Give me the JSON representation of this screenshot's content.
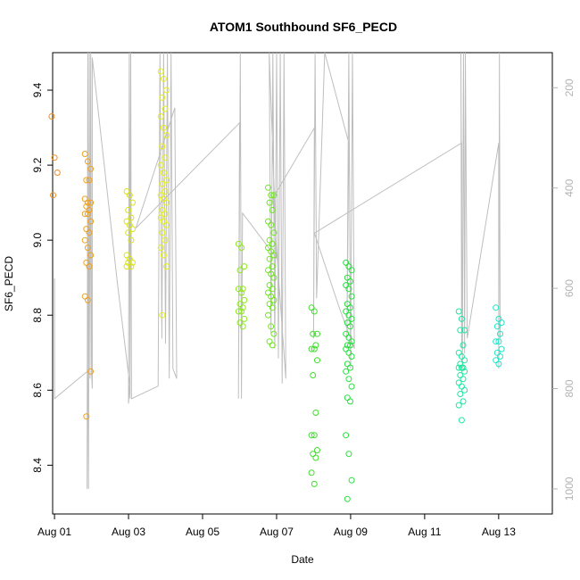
{
  "chart_data": {
    "type": "scatter",
    "title": "ATOM1 Southbound SF6_PECD",
    "xlabel": "Date",
    "ylabel": "SF6_PECD",
    "y2label": "",
    "xlim": [
      -0.05,
      13.45
    ],
    "ylim": [
      8.27,
      9.5
    ],
    "y2lim": [
      130,
      1050
    ],
    "y2_reversed": true,
    "x_ticks": [
      {
        "v": 0,
        "label": "Aug 01"
      },
      {
        "v": 2,
        "label": "Aug 03"
      },
      {
        "v": 4,
        "label": "Aug 05"
      },
      {
        "v": 6,
        "label": "Aug 07"
      },
      {
        "v": 8,
        "label": "Aug 09"
      },
      {
        "v": 10,
        "label": "Aug 11"
      },
      {
        "v": 12,
        "label": "Aug 13"
      }
    ],
    "y_ticks": [
      {
        "v": 8.4,
        "label": "8.4"
      },
      {
        "v": 8.6,
        "label": "8.6"
      },
      {
        "v": 8.8,
        "label": "8.8"
      },
      {
        "v": 9.0,
        "label": "9.0"
      },
      {
        "v": 9.2,
        "label": "9.2"
      },
      {
        "v": 9.4,
        "label": "9.4"
      }
    ],
    "y2_ticks": [
      {
        "v": 200,
        "label": "200"
      },
      {
        "v": 400,
        "label": "400"
      },
      {
        "v": 600,
        "label": "600"
      },
      {
        "v": 800,
        "label": "800"
      },
      {
        "v": 1000,
        "label": "1000"
      }
    ],
    "grid": false,
    "legend": "none",
    "colors": {
      "axis": "#000000",
      "right_axis": "#b3b3b3",
      "altitude_trace": "#bebebe"
    },
    "point_groups": [
      {
        "x": 0.0,
        "color": "#f08c1e",
        "values": [
          9.33,
          9.22,
          9.18,
          9.12
        ]
      },
      {
        "x": 0.9,
        "color": "#f0a01e",
        "values": [
          9.23,
          9.21,
          9.19,
          9.16,
          9.16,
          9.11,
          9.1,
          9.1,
          9.09,
          9.08,
          9.07,
          9.07,
          9.05,
          9.03,
          9.02,
          9.0,
          8.98,
          8.96,
          8.94,
          8.93,
          8.85,
          8.84,
          8.65,
          8.53
        ]
      },
      {
        "x": 2.03,
        "color": "#d8e21a",
        "values": [
          9.13,
          9.12,
          9.1,
          9.08,
          9.06,
          9.05,
          9.04,
          9.03,
          9.02,
          9.0,
          8.96,
          8.95,
          8.94,
          8.94,
          8.93,
          8.93
        ]
      },
      {
        "x": 2.95,
        "color": "#e6f018",
        "values": [
          9.45,
          9.43,
          9.4,
          9.38,
          9.35,
          9.33,
          9.3,
          9.28,
          9.25,
          9.22,
          9.2,
          9.18,
          9.16,
          9.15,
          9.13,
          9.12,
          9.11,
          9.1,
          9.08,
          9.07,
          9.06,
          9.05,
          9.04,
          9.02,
          9.0,
          8.98,
          8.96,
          8.93,
          8.8
        ]
      },
      {
        "x": 5.05,
        "color": "#8ee81e",
        "values": [
          8.99,
          8.98,
          8.93,
          8.92,
          8.87,
          8.87,
          8.86,
          8.84,
          8.83,
          8.82,
          8.81,
          8.81,
          8.79,
          8.78,
          8.77
        ]
      },
      {
        "x": 5.85,
        "color": "#6ee61e",
        "values": [
          9.14,
          9.12,
          9.12,
          9.1,
          9.08,
          9.05,
          9.04,
          9.02,
          9.0,
          8.99,
          8.98,
          8.97,
          8.96,
          8.95,
          8.93,
          8.92,
          8.91,
          8.9,
          8.88,
          8.87,
          8.86,
          8.85,
          8.84,
          8.83,
          8.82,
          8.8,
          8.77,
          8.75,
          8.73,
          8.72
        ]
      },
      {
        "x": 7.02,
        "color": "#3ce028",
        "values": [
          8.82,
          8.81,
          8.75,
          8.75,
          8.72,
          8.71,
          8.71,
          8.68,
          8.64,
          8.54,
          8.48,
          8.48,
          8.44,
          8.43,
          8.42,
          8.38,
          8.35
        ]
      },
      {
        "x": 7.95,
        "color": "#28e040",
        "values": [
          8.94,
          8.93,
          8.92,
          8.9,
          8.89,
          8.88,
          8.87,
          8.85,
          8.83,
          8.82,
          8.81,
          8.8,
          8.79,
          8.78,
          8.77,
          8.75,
          8.74,
          8.73,
          8.72,
          8.72,
          8.71,
          8.7,
          8.69,
          8.67,
          8.66,
          8.65,
          8.63,
          8.61,
          8.58,
          8.57,
          8.48,
          8.43,
          8.36,
          8.31
        ]
      },
      {
        "x": 11.0,
        "color": "#1ee6a0",
        "values": [
          8.81,
          8.79,
          8.76,
          8.76,
          8.72,
          8.7,
          8.69,
          8.68,
          8.67,
          8.66,
          8.66,
          8.66,
          8.65,
          8.64,
          8.63,
          8.62,
          8.61,
          8.6,
          8.59,
          8.57,
          8.56,
          8.52
        ]
      },
      {
        "x": 12.0,
        "color": "#1ee6c8",
        "values": [
          8.82,
          8.79,
          8.78,
          8.77,
          8.75,
          8.73,
          8.73,
          8.71,
          8.7,
          8.69,
          8.68,
          8.67
        ]
      }
    ],
    "altitude_trace": [
      [
        0.0,
        580
      ],
      [
        0.0,
        820
      ],
      [
        0.9,
        765
      ],
      [
        0.88,
        1000
      ],
      [
        0.9,
        130
      ],
      [
        0.92,
        1000
      ],
      [
        0.94,
        130
      ],
      [
        0.96,
        780
      ],
      [
        0.98,
        130
      ],
      [
        1.0,
        770
      ],
      [
        1.02,
        800
      ],
      [
        1.02,
        140
      ],
      [
        1.7,
        590
      ],
      [
        2.03,
        790
      ],
      [
        2.0,
        830
      ],
      [
        2.02,
        130
      ],
      [
        2.04,
        820
      ],
      [
        2.06,
        130
      ],
      [
        2.08,
        820
      ],
      [
        2.8,
        795
      ],
      [
        2.85,
        130
      ],
      [
        2.9,
        700
      ],
      [
        2.95,
        130
      ],
      [
        3.0,
        710
      ],
      [
        3.05,
        130
      ],
      [
        3.1,
        780
      ],
      [
        3.15,
        130
      ],
      [
        3.2,
        760
      ],
      [
        3.3,
        780
      ],
      [
        3.25,
        240
      ],
      [
        2.2,
        480
      ],
      [
        5.0,
        270
      ],
      [
        4.97,
        820
      ],
      [
        5.02,
        130
      ],
      [
        5.05,
        820
      ],
      [
        5.08,
        450
      ],
      [
        6.0,
        540
      ],
      [
        5.8,
        130
      ],
      [
        5.85,
        690
      ],
      [
        5.9,
        130
      ],
      [
        5.95,
        720
      ],
      [
        6.0,
        130
      ],
      [
        6.05,
        740
      ],
      [
        6.1,
        130
      ],
      [
        6.15,
        790
      ],
      [
        6.2,
        130
      ],
      [
        6.25,
        780
      ],
      [
        5.9,
        420
      ],
      [
        7.02,
        280
      ],
      [
        7.0,
        700
      ],
      [
        7.04,
        130
      ],
      [
        7.08,
        620
      ],
      [
        7.3,
        130
      ],
      [
        7.95,
        310
      ],
      [
        7.9,
        700
      ],
      [
        7.95,
        130
      ],
      [
        8.0,
        760
      ],
      [
        8.05,
        130
      ],
      [
        8.1,
        720
      ],
      [
        7.7,
        640
      ],
      [
        7.02,
        490
      ],
      [
        11.0,
        310
      ],
      [
        11.0,
        720
      ],
      [
        10.98,
        130
      ],
      [
        11.02,
        760
      ],
      [
        11.05,
        130
      ],
      [
        11.08,
        730
      ],
      [
        11.1,
        130
      ],
      [
        11.15,
        700
      ],
      [
        12.0,
        310
      ],
      [
        12.0,
        760
      ],
      [
        12.02,
        130
      ],
      [
        12.04,
        700
      ]
    ]
  }
}
